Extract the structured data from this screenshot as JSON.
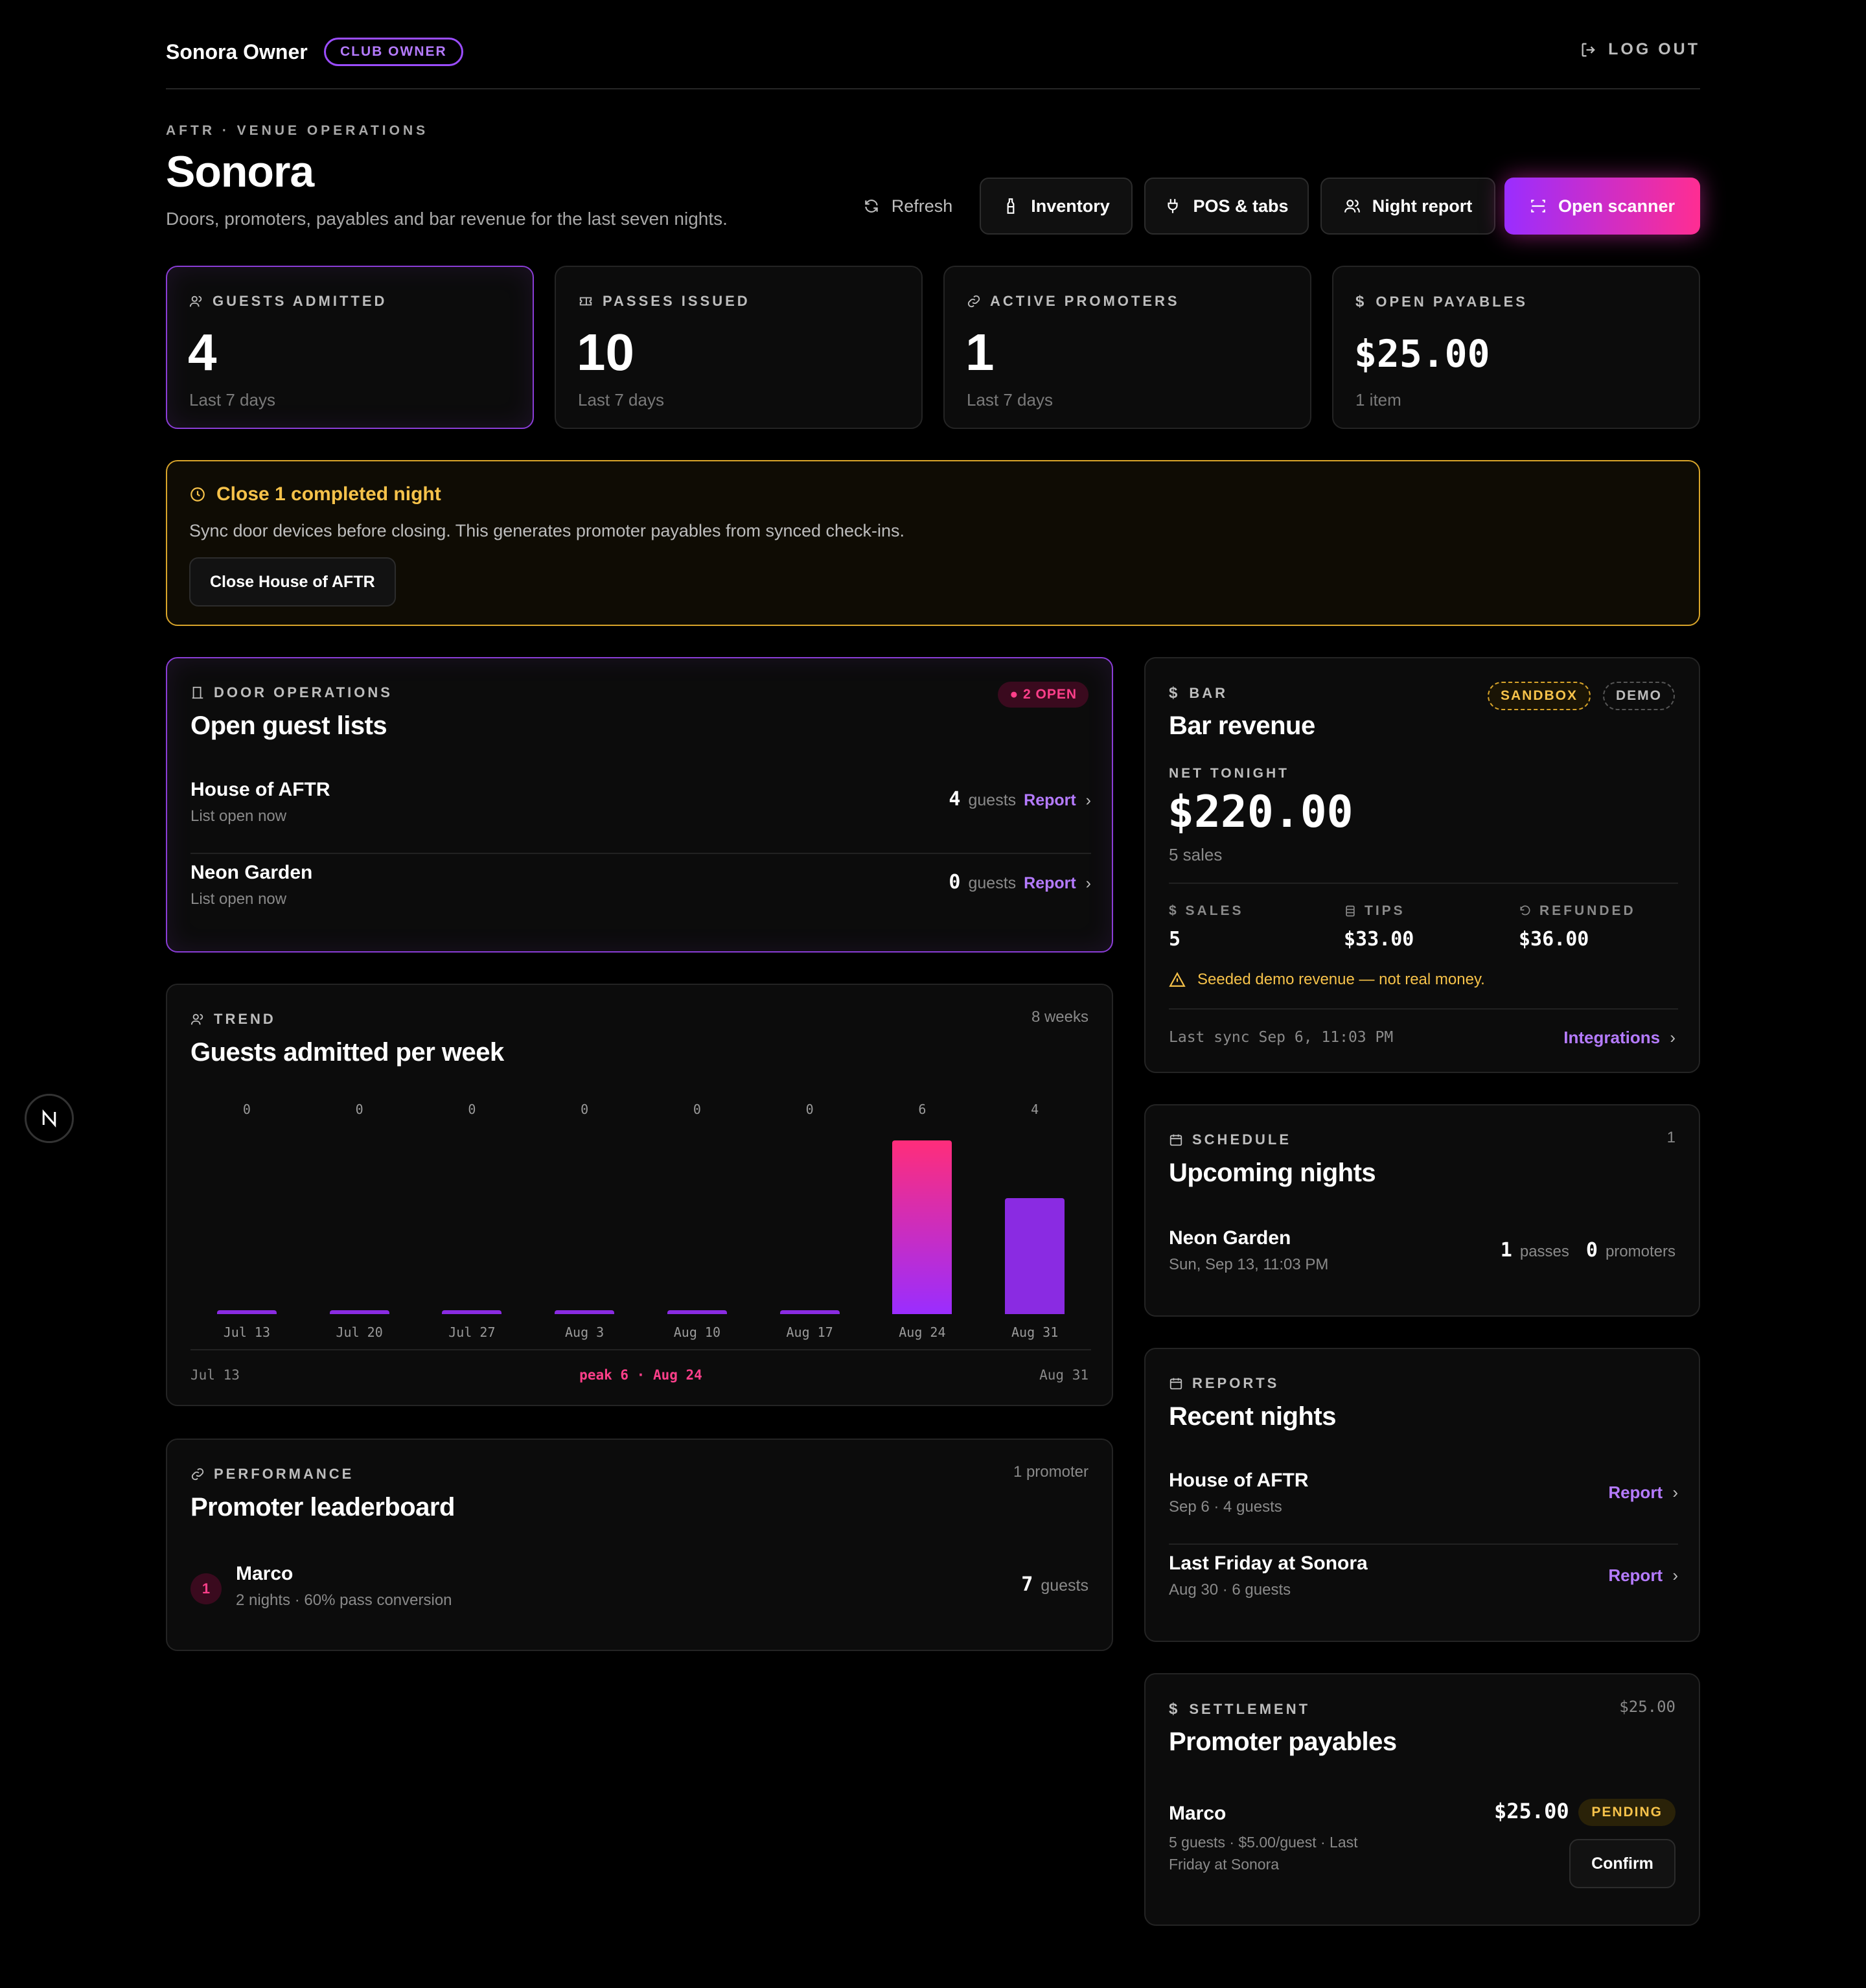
{
  "header": {
    "brand": "Sonora Owner",
    "role_badge": "CLUB OWNER",
    "logout_label": "LOG OUT"
  },
  "page": {
    "eyebrow": "AFTR · VENUE OPERATIONS",
    "title": "Sonora",
    "subtitle": "Doors, promoters, payables and bar revenue for the last seven nights."
  },
  "actions": {
    "refresh": "Refresh",
    "inventory": "Inventory",
    "pos": "POS & tabs",
    "night_report": "Night report",
    "open_scanner": "Open scanner"
  },
  "stats": [
    {
      "label": "GUESTS ADMITTED",
      "value": "4",
      "foot": "Last 7 days",
      "icon": "users-icon"
    },
    {
      "label": "PASSES ISSUED",
      "value": "10",
      "foot": "Last 7 days",
      "icon": "ticket-icon"
    },
    {
      "label": "ACTIVE PROMOTERS",
      "value": "1",
      "foot": "Last 7 days",
      "icon": "link-icon"
    },
    {
      "label": "OPEN PAYABLES",
      "value": "$25.00",
      "foot": "1 item",
      "icon": "dollar-icon"
    }
  ],
  "alert": {
    "title": "Close 1 completed night",
    "text": "Sync door devices before closing. This generates promoter payables from synced check-ins.",
    "button": "Close House of AFTR"
  },
  "door_ops": {
    "label": "DOOR OPERATIONS",
    "title": "Open guest lists",
    "badge": "● 2 OPEN",
    "rows": [
      {
        "name": "House of AFTR",
        "sub": "List open now",
        "count": "4",
        "unit": "guests",
        "link": "Report"
      },
      {
        "name": "Neon Garden",
        "sub": "List open now",
        "count": "0",
        "unit": "guests",
        "link": "Report"
      }
    ]
  },
  "trend": {
    "label": "TREND",
    "title": "Guests admitted per week",
    "range": "8 weeks",
    "footer_start": "Jul 13",
    "footer_peak": "peak 6 · Aug 24",
    "footer_end": "Aug 31"
  },
  "chart_data": {
    "type": "bar",
    "categories": [
      "Jul 13",
      "Jul 20",
      "Jul 27",
      "Aug 3",
      "Aug 10",
      "Aug 17",
      "Aug 24",
      "Aug 31"
    ],
    "values": [
      0,
      0,
      0,
      0,
      0,
      0,
      6,
      4
    ],
    "title": "Guests admitted per week",
    "ylim": [
      0,
      6
    ],
    "grid": false
  },
  "performance": {
    "label": "PERFORMANCE",
    "title": "Promoter leaderboard",
    "count": "1 promoter",
    "rows": [
      {
        "rank": "1",
        "name": "Marco",
        "sub": "2 nights · 60% pass conversion",
        "count": "7",
        "unit": "guests"
      }
    ]
  },
  "bar_revenue": {
    "label": "BAR",
    "title": "Bar revenue",
    "sandbox": "SANDBOX",
    "demo": "DEMO",
    "net_label": "NET TONIGHT",
    "net_value": "$220.00",
    "sales_count": "5 sales",
    "metrics": [
      {
        "label": "SALES",
        "value": "5"
      },
      {
        "label": "TIPS",
        "value": "$33.00"
      },
      {
        "label": "REFUNDED",
        "value": "$36.00"
      }
    ],
    "warning": "Seeded demo revenue — not real money.",
    "last_sync": "Last sync Sep 6, 11:03 PM",
    "integrations": "Integrations"
  },
  "schedule": {
    "label": "SCHEDULE",
    "title": "Upcoming nights",
    "count": "1",
    "rows": [
      {
        "name": "Neon Garden",
        "sub": "Sun, Sep 13, 11:03 PM",
        "passes": "1",
        "passes_unit": "passes",
        "promoters": "0",
        "promoters_unit": "promoters"
      }
    ]
  },
  "reports": {
    "label": "REPORTS",
    "title": "Recent nights",
    "rows": [
      {
        "name": "House of AFTR",
        "sub": "Sep 6 · 4 guests",
        "link": "Report"
      },
      {
        "name": "Last Friday at Sonora",
        "sub": "Aug 30 · 6 guests",
        "link": "Report"
      }
    ]
  },
  "settlement": {
    "label": "SETTLEMENT",
    "title": "Promoter payables",
    "total": "$25.00",
    "rows": [
      {
        "name": "Marco",
        "sub_line1": "5 guests · $5.00/guest · Last",
        "sub_line2": "Friday at Sonora",
        "amount": "$25.00",
        "status": "PENDING",
        "button": "Confirm"
      }
    ]
  },
  "colors": {
    "accent_purple": "#9a2dff",
    "accent_pink": "#ff2d92",
    "warning": "#f6c24a"
  }
}
